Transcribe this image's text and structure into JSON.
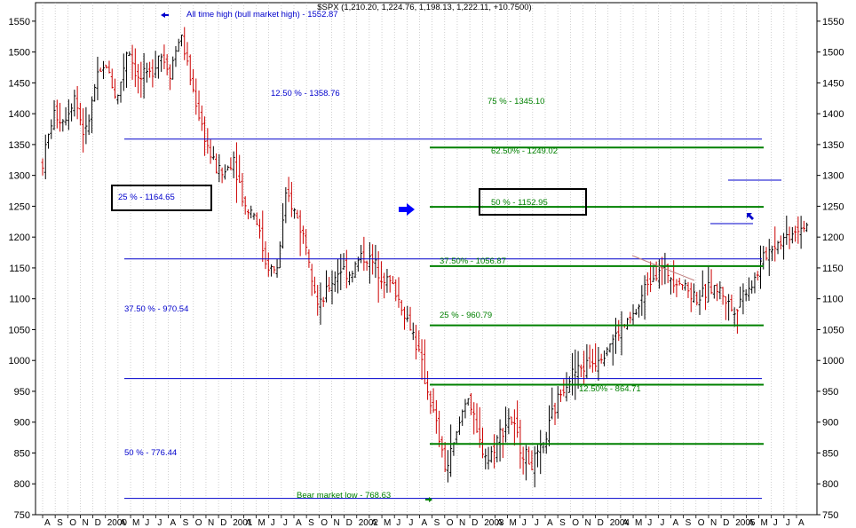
{
  "header": {
    "title": "$SPX (1,210.20, 1,224.76, 1,198.13, 1,222.11, +10.7500)"
  },
  "colors": {
    "blue": "#0000cc",
    "green": "#008000",
    "up": "#000000",
    "down": "#cc0000",
    "grid": "#b0b0b0"
  },
  "chart_data": {
    "type": "candlestick",
    "title": "$SPX (1,210.20, 1,224.76, 1,198.13, 1,222.11, +10.7500)",
    "x": {
      "start": "2000-08",
      "end": "2005-09"
    },
    "ylim": [
      750,
      1580
    ],
    "y_ticks": [
      750,
      800,
      850,
      900,
      950,
      1000,
      1050,
      1100,
      1150,
      1200,
      1250,
      1300,
      1350,
      1400,
      1450,
      1500,
      1550
    ],
    "x_tick_labels": [
      "A",
      "S",
      "O",
      "N",
      "D",
      "2000",
      "A",
      "M",
      "J",
      "J",
      "A",
      "S",
      "O",
      "N",
      "D",
      "2001",
      "A",
      "M",
      "J",
      "J",
      "A",
      "S",
      "O",
      "N",
      "D",
      "2002",
      "A",
      "M",
      "J",
      "J",
      "A",
      "S",
      "O",
      "N",
      "D",
      "2003",
      "A",
      "M",
      "J",
      "J",
      "A",
      "S",
      "O",
      "N",
      "D",
      "2004",
      "A",
      "M",
      "J",
      "J",
      "A",
      "S",
      "O",
      "N",
      "D",
      "2005",
      "A",
      "M",
      "J",
      "J",
      "A"
    ],
    "price_path": [
      [
        0,
        1320
      ],
      [
        1,
        1400
      ],
      [
        2,
        1390
      ],
      [
        3,
        1430
      ],
      [
        4,
        1360
      ],
      [
        5,
        1450
      ],
      [
        6,
        1480
      ],
      [
        7,
        1420
      ],
      [
        8,
        1510
      ],
      [
        9,
        1455
      ],
      [
        10,
        1460
      ],
      [
        11,
        1500
      ],
      [
        12,
        1470
      ],
      [
        13,
        1530
      ],
      [
        14,
        1450
      ],
      [
        15,
        1380
      ],
      [
        16,
        1320
      ],
      [
        17,
        1300
      ],
      [
        18,
        1330
      ],
      [
        19,
        1250
      ],
      [
        20,
        1240
      ],
      [
        21,
        1160
      ],
      [
        22,
        1140
      ],
      [
        23,
        1270
      ],
      [
        24,
        1230
      ],
      [
        25,
        1180
      ],
      [
        26,
        1080
      ],
      [
        27,
        1120
      ],
      [
        28,
        1150
      ],
      [
        29,
        1140
      ],
      [
        30,
        1170
      ],
      [
        31,
        1160
      ],
      [
        32,
        1140
      ],
      [
        33,
        1120
      ],
      [
        34,
        1080
      ],
      [
        35,
        1040
      ],
      [
        36,
        970
      ],
      [
        37,
        900
      ],
      [
        38,
        820
      ],
      [
        39,
        880
      ],
      [
        40,
        950
      ],
      [
        41,
        870
      ],
      [
        42,
        840
      ],
      [
        43,
        880
      ],
      [
        44,
        910
      ],
      [
        45,
        860
      ],
      [
        46,
        830
      ],
      [
        47,
        850
      ],
      [
        48,
        910
      ],
      [
        49,
        960
      ],
      [
        50,
        980
      ],
      [
        51,
        990
      ],
      [
        52,
        1000
      ],
      [
        53,
        1020
      ],
      [
        54,
        1040
      ],
      [
        55,
        1060
      ],
      [
        56,
        1080
      ],
      [
        57,
        1130
      ],
      [
        58,
        1150
      ],
      [
        59,
        1140
      ],
      [
        60,
        1130
      ],
      [
        61,
        1110
      ],
      [
        62,
        1100
      ],
      [
        63,
        1120
      ],
      [
        64,
        1110
      ],
      [
        65,
        1080
      ],
      [
        66,
        1110
      ],
      [
        67,
        1130
      ],
      [
        68,
        1170
      ],
      [
        69,
        1190
      ],
      [
        70,
        1200
      ],
      [
        71,
        1215
      ],
      [
        72,
        1222
      ]
    ],
    "levels": [
      {
        "series": "blue",
        "label": "12.50 % - 1358.76",
        "value": 1358.76
      },
      {
        "series": "blue",
        "label": "25 % - 1164.65",
        "value": 1164.65
      },
      {
        "series": "blue",
        "label": "37.50 % - 970.54",
        "value": 970.54
      },
      {
        "series": "blue",
        "label": "50 % - 776.44",
        "value": 776.44
      },
      {
        "series": "green",
        "label": "75 % - 1345.10",
        "value": 1345.1
      },
      {
        "series": "green",
        "label": "62.50% - 1249.02",
        "value": 1249.02
      },
      {
        "series": "green",
        "label": "50 % - 1152.95",
        "value": 1152.95
      },
      {
        "series": "green",
        "label": "37.50% - 1056.87",
        "value": 1056.87
      },
      {
        "series": "green",
        "label": "25 % - 960.79",
        "value": 960.79
      },
      {
        "series": "green",
        "label": "12.50% - 864.71",
        "value": 864.71
      }
    ],
    "annotations": [
      {
        "text": "All time high (bull market high) - 1552.87",
        "value": 1552.87
      },
      {
        "text": "Bear market low - 768.63",
        "value": 768.63
      }
    ]
  }
}
